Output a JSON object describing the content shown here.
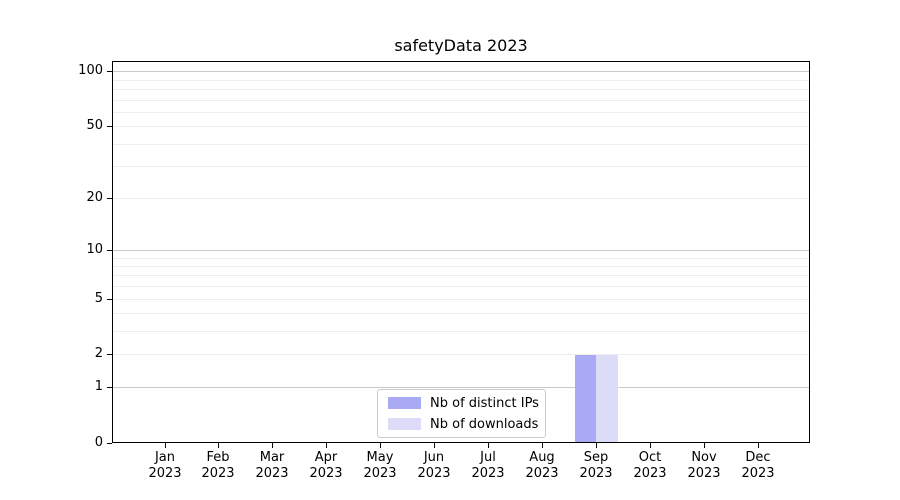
{
  "figure": {
    "title": "safetyData 2023",
    "background": "#ffffff"
  },
  "legend": {
    "items": [
      {
        "label": "Nb of distinct IPs",
        "color": "#a9a9f4"
      },
      {
        "label": "Nb of downloads",
        "color": "#dcdcf8"
      }
    ]
  },
  "colors": {
    "grid_major": "#c9c9c9",
    "grid_minor": "#ededed",
    "spine": "#000000",
    "text": "#000000",
    "background": "#ffffff"
  },
  "chart_data": {
    "type": "bar",
    "title": "safetyData 2023",
    "categories": [
      "Jan 2023",
      "Feb 2023",
      "Mar 2023",
      "Apr 2023",
      "May 2023",
      "Jun 2023",
      "Jul 2023",
      "Aug 2023",
      "Sep 2023",
      "Oct 2023",
      "Nov 2023",
      "Dec 2023"
    ],
    "series": [
      {
        "name": "Nb of distinct IPs",
        "color": "#a9a9f4",
        "values": [
          0,
          0,
          0,
          0,
          0,
          0,
          0,
          0,
          2,
          0,
          0,
          0
        ]
      },
      {
        "name": "Nb of downloads",
        "color": "#dcdcf8",
        "values": [
          0,
          0,
          0,
          0,
          0,
          0,
          0,
          0,
          2,
          0,
          0,
          0
        ]
      }
    ],
    "xlabel": "",
    "ylabel": "",
    "yscale": "log1p",
    "ylim": [
      0,
      113
    ],
    "y_ticks": [
      0,
      1,
      2,
      5,
      10,
      20,
      50,
      100
    ],
    "y_major_grid": [
      1,
      10,
      100
    ],
    "y_minor_grid": [
      2,
      3,
      4,
      5,
      6,
      7,
      8,
      9,
      20,
      30,
      40,
      50,
      60,
      70,
      80,
      90
    ],
    "grid": true,
    "legend_position": "inside-bottom-center"
  }
}
